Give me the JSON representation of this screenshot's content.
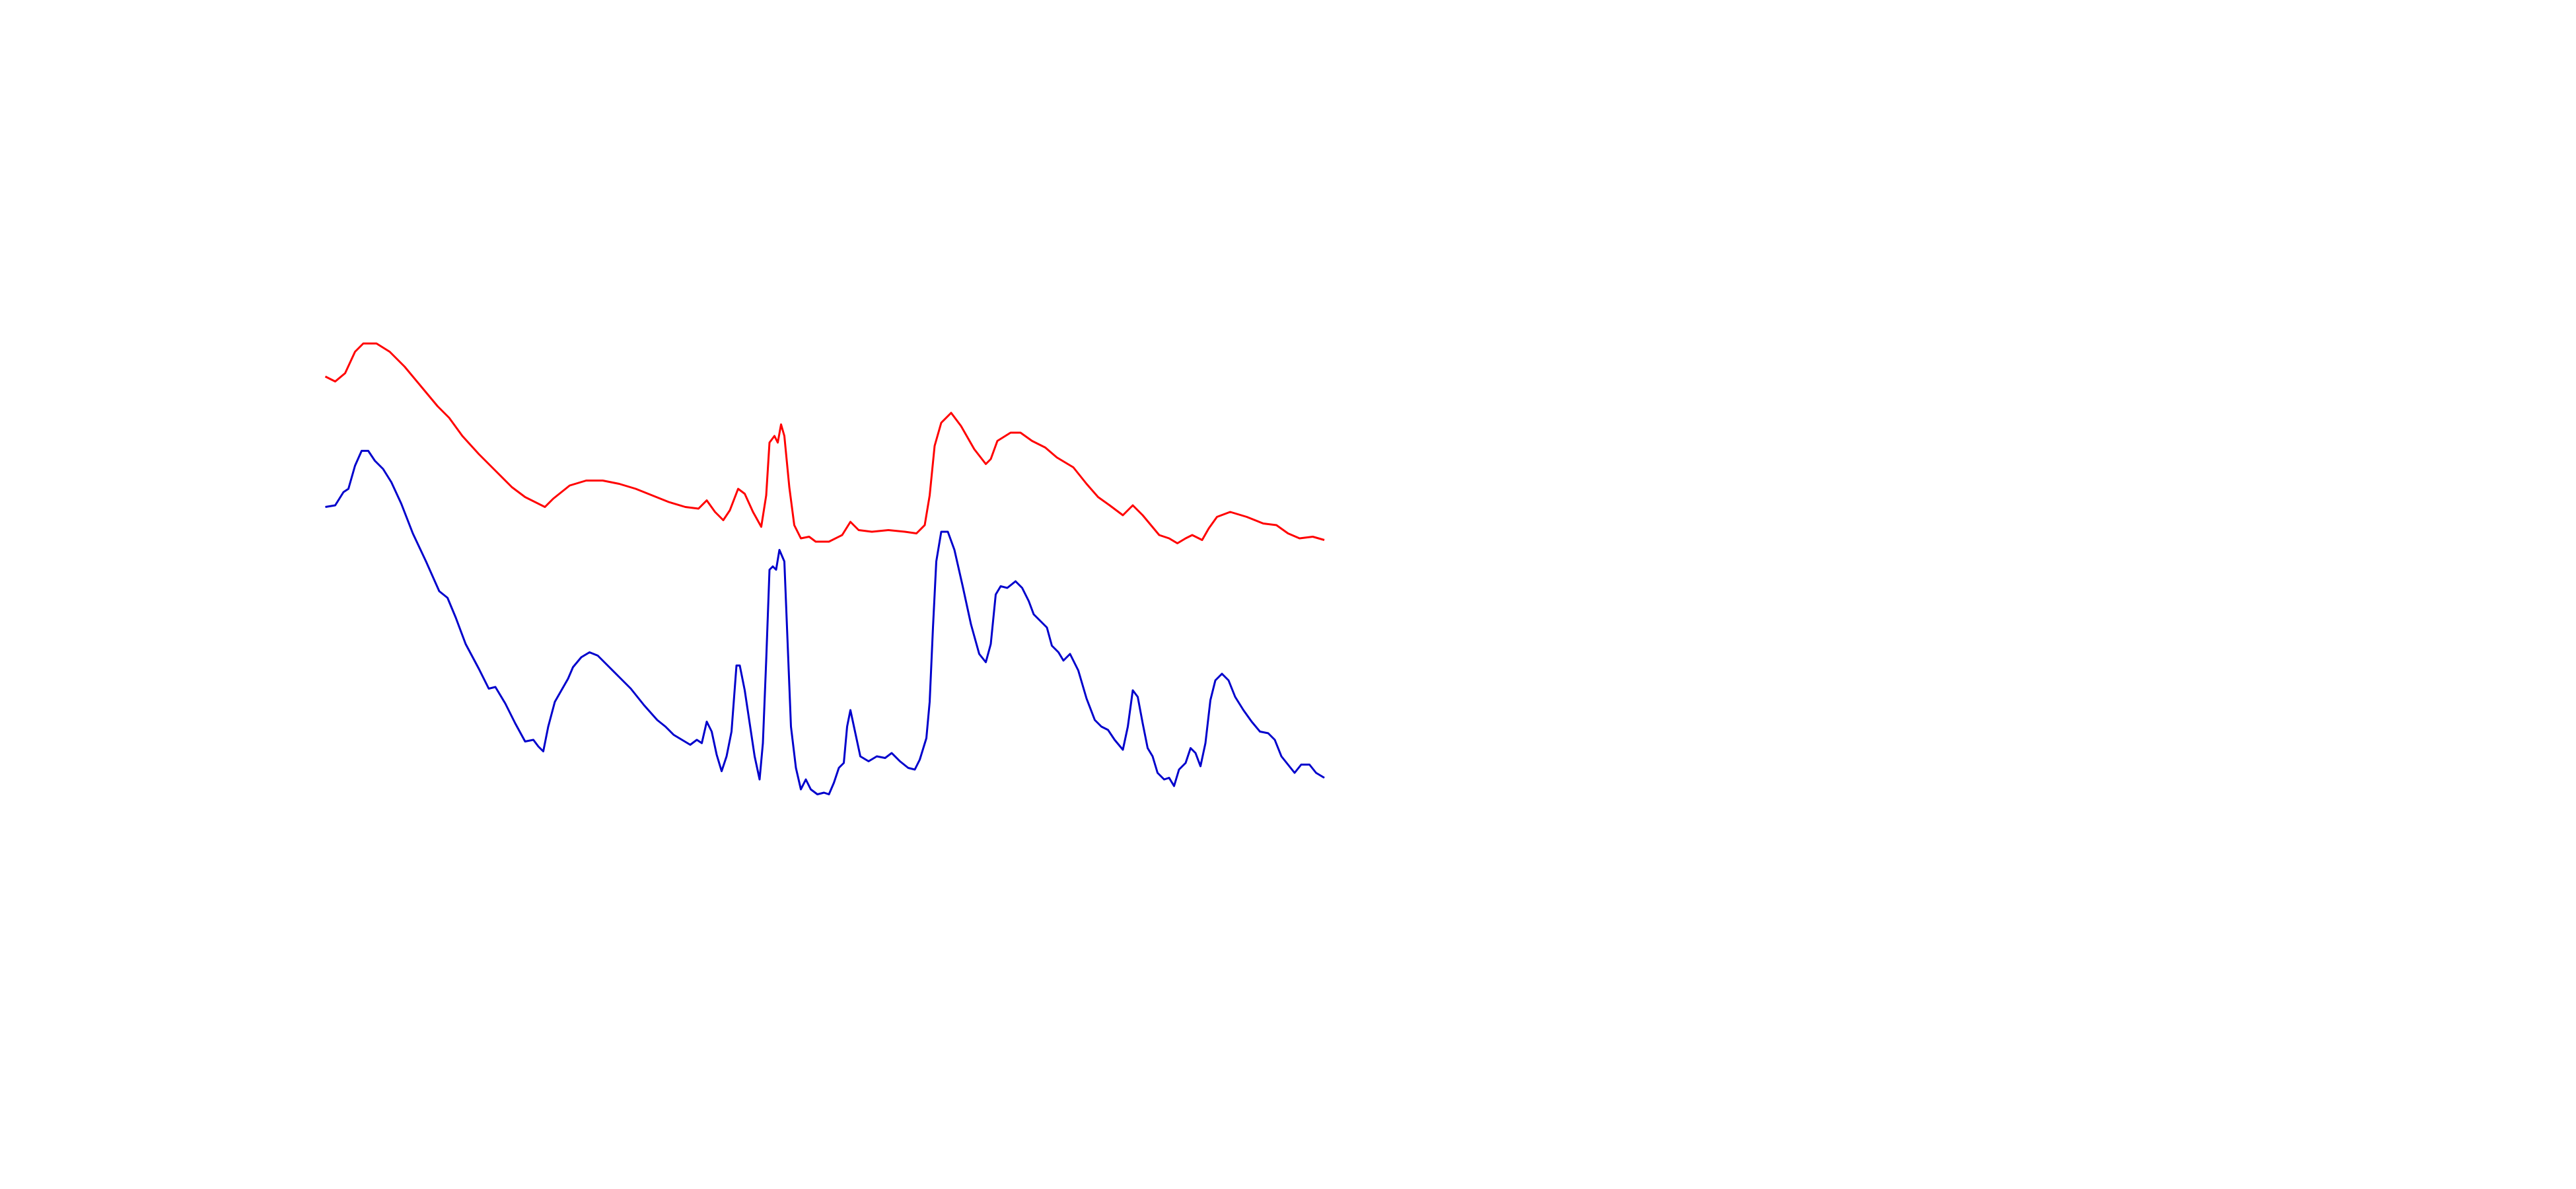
{
  "chart_data": {
    "type": "line",
    "xlim": [
      0,
      605
    ],
    "ylim": [
      0,
      400
    ],
    "series": [
      {
        "color": "#ff0000",
        "x": [
          0,
          6,
          12,
          18,
          23,
          31,
          39,
          48,
          58,
          68,
          75,
          83,
          93,
          103,
          113,
          121,
          133,
          138,
          148,
          158,
          168,
          178,
          188,
          198,
          208,
          218,
          226,
          231,
          236,
          241,
          245,
          250,
          254,
          259,
          264,
          267,
          269,
          272,
          274,
          276,
          278,
          281,
          284,
          288,
          293,
          297,
          305,
          313,
          318,
          323,
          331,
          341,
          351,
          358,
          363,
          366,
          369,
          373,
          379,
          385,
          393,
          400,
          403,
          407,
          415,
          421,
          428,
          436,
          443,
          453,
          461,
          468,
          475,
          483,
          489,
          495,
          500,
          505,
          511,
          516,
          521,
          525,
          531,
          535,
          540,
          548,
          558,
          568,
          576,
          583,
          590,
          598,
          605
        ],
        "values": [
          272,
          269,
          274,
          287,
          292,
          292,
          287,
          278,
          266,
          254,
          247,
          236,
          225,
          215,
          205,
          199,
          193,
          198,
          206,
          209,
          209,
          207,
          204,
          200,
          196,
          193,
          192,
          197,
          190,
          185,
          191,
          204,
          201,
          190,
          181,
          200,
          232,
          236,
          232,
          243,
          236,
          205,
          182,
          174,
          175,
          172,
          172,
          176,
          184,
          179,
          178,
          179,
          178,
          177,
          182,
          200,
          230,
          244,
          250,
          242,
          228,
          219,
          222,
          233,
          238,
          238,
          233,
          229,
          223,
          217,
          207,
          199,
          194,
          188,
          194,
          188,
          182,
          176,
          174,
          171,
          174,
          176,
          173,
          180,
          187,
          190,
          187,
          183,
          182,
          177,
          174,
          175,
          173
        ]
      },
      {
        "color": "#0000cc",
        "x": [
          0,
          6,
          11,
          14,
          18,
          22,
          26,
          30,
          35,
          40,
          46,
          53,
          61,
          69,
          74,
          79,
          85,
          93,
          99,
          103,
          109,
          115,
          121,
          126,
          129,
          132,
          135,
          139,
          143,
          147,
          150,
          155,
          160,
          165,
          171,
          178,
          185,
          193,
          201,
          206,
          211,
          216,
          221,
          225,
          228,
          231,
          234,
          237,
          240,
          243,
          246,
          249,
          251,
          254,
          257,
          260,
          263,
          265,
          267,
          269,
          271,
          273,
          275,
          278,
          280,
          282,
          285,
          288,
          291,
          294,
          298,
          302,
          305,
          308,
          311,
          314,
          316,
          318,
          321,
          324,
          329,
          334,
          339,
          343,
          348,
          353,
          357,
          360,
          364,
          366,
          368,
          370,
          373,
          377,
          381,
          386,
          391,
          396,
          400,
          403,
          406,
          409,
          413,
          418,
          422,
          426,
          429,
          433,
          437,
          440,
          444,
          447,
          451,
          456,
          461,
          466,
          470,
          474,
          478,
          483,
          486,
          489,
          492,
          495,
          498,
          501,
          504,
          508,
          511,
          514,
          517,
          521,
          524,
          527,
          530,
          533,
          536,
          539,
          543,
          547,
          551,
          556,
          561,
          566,
          571,
          575,
          579,
          583,
          587,
          591,
          596,
          600,
          605
        ],
        "values": [
          193,
          194,
          202,
          204,
          218,
          227,
          227,
          221,
          216,
          208,
          195,
          177,
          160,
          142,
          138,
          126,
          110,
          95,
          83,
          84,
          74,
          62,
          51,
          52,
          48,
          45,
          60,
          75,
          82,
          89,
          96,
          102,
          105,
          103,
          97,
          90,
          83,
          73,
          64,
          60,
          55,
          52,
          49,
          52,
          50,
          63,
          57,
          43,
          33,
          42,
          57,
          97,
          97,
          82,
          62,
          42,
          28,
          50,
          100,
          155,
          157,
          155,
          167,
          160,
          110,
          60,
          35,
          22,
          28,
          22,
          19,
          20,
          19,
          26,
          35,
          38,
          60,
          70,
          56,
          42,
          39,
          42,
          41,
          44,
          39,
          35,
          34,
          40,
          53,
          75,
          120,
          160,
          178,
          178,
          167,
          145,
          122,
          104,
          99,
          110,
          140,
          145,
          144,
          148,
          144,
          136,
          128,
          124,
          120,
          109,
          105,
          100,
          104,
          94,
          77,
          64,
          60,
          58,
          52,
          46,
          60,
          82,
          78,
          62,
          47,
          42,
          32,
          28,
          29,
          24,
          34,
          38,
          47,
          44,
          36,
          50,
          76,
          88,
          92,
          88,
          78,
          70,
          63,
          57,
          56,
          52,
          42,
          37,
          32,
          37,
          37,
          32,
          29
        ]
      }
    ]
  }
}
